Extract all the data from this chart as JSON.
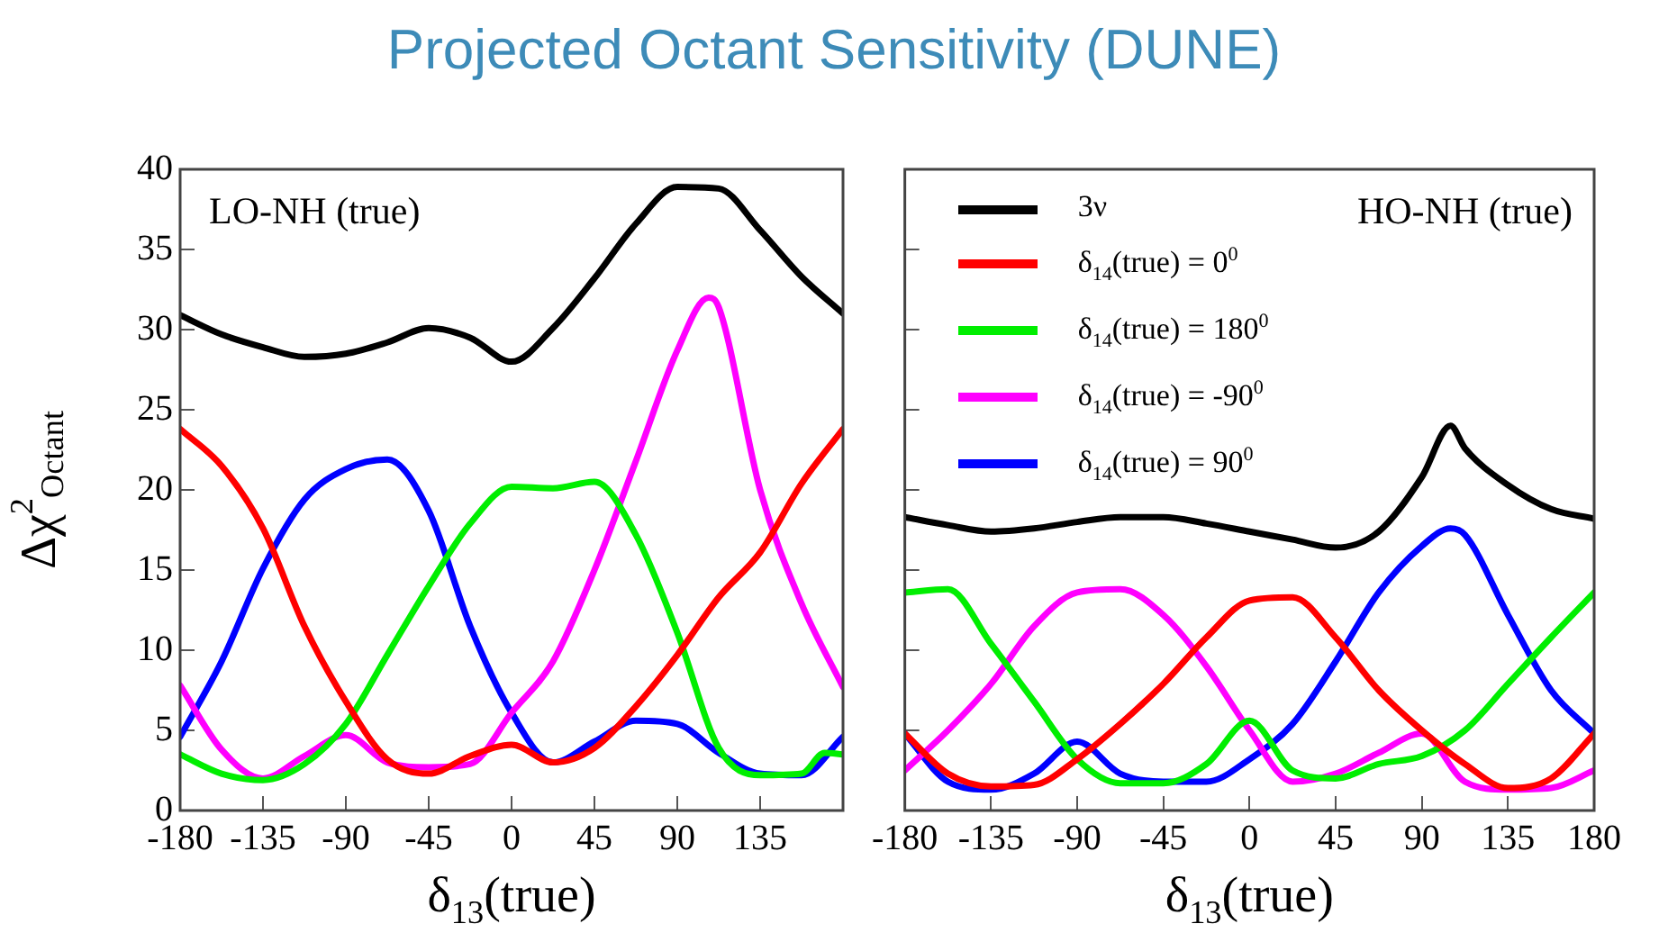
{
  "chart_data": [
    {
      "type": "line",
      "title": "Projected Octant Sensitivity (DUNE)",
      "xlabel": "δ$_{13}$(true)",
      "ylabel": "Δχ$^{2}$$_{Octant}$",
      "annotations": [
        "LO-NH (true)"
      ],
      "xlim": [
        -180,
        180
      ],
      "xticks": [
        -180,
        -135,
        -90,
        -45,
        0,
        45,
        90,
        135,
        {
          "value": 180,
          "label": null
        }
      ],
      "ylim": [
        0,
        40
      ],
      "yticks": [
        0,
        5,
        10,
        15,
        20,
        25,
        30,
        35,
        40
      ],
      "grid": false,
      "legend": false,
      "marker": "none",
      "line_style": "solid",
      "series": [
        {
          "color": "#000000",
          "x": [
            -180,
            -157.5,
            -135,
            -112.5,
            -90,
            -67.5,
            -45,
            -22.5,
            0,
            22.5,
            45,
            67.5,
            90,
            112.5,
            135,
            157.5,
            180
          ],
          "values": [
            30.9,
            29.7,
            28.9,
            28.3,
            28.5,
            29.2,
            30.1,
            29.5,
            28.0,
            30.1,
            33.2,
            36.6,
            38.9,
            38.8,
            36.2,
            33.3,
            31.0
          ]
        },
        {
          "color": "#ff0000",
          "x": [
            -180,
            -157.5,
            -135,
            -112.5,
            -90,
            -67.5,
            -45,
            -22.5,
            0,
            22.5,
            45,
            67.5,
            90,
            112.5,
            135,
            157.5,
            180
          ],
          "values": [
            23.8,
            21.5,
            17.6,
            11.5,
            6.8,
            3.2,
            2.3,
            3.4,
            4.1,
            3.0,
            3.9,
            6.5,
            9.7,
            13.3,
            16.1,
            20.4,
            23.8
          ]
        },
        {
          "color": "#00ee00",
          "x": [
            -180,
            -157.5,
            -135,
            -112.5,
            -90,
            -67.5,
            -45,
            -22.5,
            0,
            22.5,
            45,
            67.5,
            90,
            112.5,
            135,
            157.5,
            170,
            180
          ],
          "values": [
            3.5,
            2.3,
            1.9,
            2.9,
            5.4,
            9.7,
            14.0,
            17.9,
            20.2,
            20.1,
            20.5,
            17.2,
            11.1,
            3.9,
            2.2,
            2.3,
            3.6,
            3.5
          ]
        },
        {
          "color": "#ff00ff",
          "x": [
            -180,
            -157.5,
            -135,
            -112.5,
            -90,
            -67.5,
            -45,
            -22.5,
            0,
            22.5,
            45,
            67.5,
            90,
            107,
            112.5,
            135,
            157.5,
            180
          ],
          "values": [
            7.8,
            3.8,
            2.0,
            3.4,
            4.7,
            3.0,
            2.7,
            2.9,
            6.1,
            9.3,
            15.0,
            21.8,
            28.7,
            32.0,
            31.4,
            20.0,
            12.9,
            7.7
          ]
        },
        {
          "color": "#0000ff",
          "x": [
            -180,
            -157.5,
            -135,
            -112.5,
            -90,
            -67.5,
            -45,
            -22.5,
            0,
            22.5,
            45,
            67.5,
            90,
            112.5,
            135,
            157.5,
            180
          ],
          "values": [
            4.6,
            9.3,
            15.1,
            19.4,
            21.3,
            21.9,
            18.7,
            11.5,
            6.1,
            3.0,
            4.3,
            5.6,
            5.4,
            3.6,
            2.3,
            2.2,
            4.6
          ]
        }
      ]
    },
    {
      "type": "line",
      "xlabel": "δ$_{13}$(true)",
      "annotations": [
        "HO-NH (true)"
      ],
      "xlim": [
        -180,
        180
      ],
      "xticks": [
        -180,
        -135,
        -90,
        -45,
        0,
        45,
        90,
        135,
        180
      ],
      "ylim": [
        0,
        40
      ],
      "yticks": [
        0,
        5,
        10,
        15,
        20,
        25,
        30,
        35,
        40
      ],
      "tick_labels": "x",
      "grid": false,
      "legend": "top left",
      "marker": "none",
      "line_style": "solid",
      "series": [
        {
          "name": "3ν",
          "color": "#000000",
          "x": [
            -180,
            -157.5,
            -135,
            -112.5,
            -90,
            -67.5,
            -45,
            -22.5,
            0,
            22.5,
            45,
            67.5,
            90,
            105,
            112.5,
            135,
            157.5,
            180
          ],
          "values": [
            18.3,
            17.8,
            17.4,
            17.6,
            18.0,
            18.3,
            18.3,
            17.9,
            17.4,
            16.9,
            16.4,
            17.4,
            20.8,
            24.0,
            22.6,
            20.3,
            18.8,
            18.2
          ]
        },
        {
          "name": "δ$_{14}$(true) = 0$^{0}$",
          "color": "#ff0000",
          "x": [
            -180,
            -157.5,
            -135,
            -112.5,
            -90,
            -67.5,
            -45,
            -22.5,
            0,
            22.5,
            45,
            67.5,
            90,
            112.5,
            135,
            157.5,
            180
          ],
          "values": [
            4.8,
            2.3,
            1.5,
            1.6,
            3.2,
            5.4,
            7.9,
            10.8,
            13.1,
            13.3,
            10.8,
            7.5,
            5.0,
            2.9,
            1.4,
            2.0,
            4.8
          ]
        },
        {
          "name": "δ$_{14}$(true) = 180$^{0}$",
          "color": "#00ee00",
          "x": [
            -180,
            -157.5,
            -135,
            -112.5,
            -90,
            -67.5,
            -45,
            -22.5,
            0,
            22.5,
            45,
            67.5,
            90,
            112.5,
            135,
            157.5,
            180
          ],
          "values": [
            13.6,
            13.8,
            10.4,
            6.8,
            3.2,
            1.7,
            1.7,
            2.9,
            5.6,
            2.5,
            2.0,
            2.9,
            3.4,
            5.0,
            7.9,
            10.8,
            13.6
          ]
        },
        {
          "name": "δ$_{14}$(true) = -90$^{0}$",
          "color": "#ff00ff",
          "x": [
            -180,
            -157.5,
            -135,
            -112.5,
            -90,
            -67.5,
            -45,
            -22.5,
            0,
            22.5,
            45,
            67.5,
            90,
            112.5,
            135,
            157.5,
            180
          ],
          "values": [
            2.5,
            5.0,
            7.9,
            11.5,
            13.6,
            13.8,
            12.2,
            9.0,
            5.0,
            1.8,
            2.3,
            3.6,
            4.8,
            1.8,
            1.3,
            1.4,
            2.5
          ]
        },
        {
          "name": "δ$_{14}$(true) = 90$^{0}$",
          "color": "#0000ff",
          "x": [
            -180,
            -157.5,
            -135,
            -112.5,
            -90,
            -67.5,
            -45,
            -22.5,
            0,
            22.5,
            45,
            67.5,
            90,
            105,
            112.5,
            135,
            157.5,
            180
          ],
          "values": [
            4.8,
            1.8,
            1.3,
            2.3,
            4.3,
            2.3,
            1.8,
            1.8,
            3.2,
            5.4,
            9.3,
            13.6,
            16.5,
            17.6,
            17.2,
            12.2,
            7.5,
            4.8
          ]
        }
      ]
    }
  ]
}
